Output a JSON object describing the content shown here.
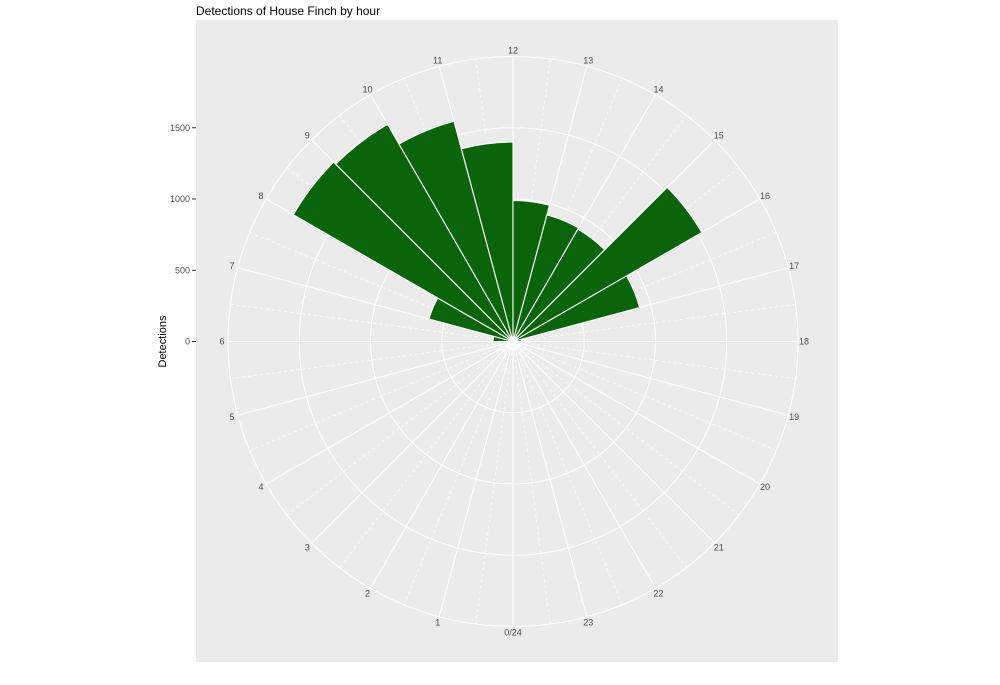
{
  "title": "Detections of House Finch by hour",
  "y_axis": {
    "label": "Detections",
    "tick_labels": [
      "0",
      "500",
      "1000",
      "1500"
    ],
    "tick_values": [
      0,
      500,
      1000,
      1500
    ]
  },
  "colors": {
    "bar_fill": "#0A650A",
    "bar_stroke": "#FFFFFF",
    "panel_background": "#EBEBEB",
    "gridline": "#FFFFFF",
    "axis_text": "#4D4D4D",
    "title_text": "#000000",
    "axis_title_text": "#000000",
    "tick_mark": "#333333",
    "figure_background": "#FFFFFF"
  },
  "chart_data": {
    "type": "bar",
    "subtype": "polar-rose",
    "orientation": "hour-of-day clock, 12 at top, hours increase clockwise, 0/24 at bottom",
    "title": "Detections of House Finch by hour",
    "ylabel": "Detections",
    "categories": [
      0,
      1,
      2,
      3,
      4,
      5,
      6,
      7,
      8,
      9,
      10,
      11,
      12,
      13,
      14,
      15,
      16,
      17,
      18,
      19,
      20,
      21,
      22,
      23
    ],
    "values": [
      0,
      0,
      0,
      0,
      0,
      0,
      140,
      610,
      1780,
      1760,
      1600,
      1400,
      990,
      920,
      910,
      1530,
      920,
      60,
      0,
      0,
      0,
      0,
      0,
      0
    ],
    "hour_labels": [
      "0/24",
      "1",
      "2",
      "3",
      "4",
      "5",
      "6",
      "7",
      "8",
      "9",
      "10",
      "11",
      "12",
      "13",
      "14",
      "15",
      "16",
      "17",
      "18",
      "19",
      "20",
      "21",
      "22",
      "23"
    ],
    "r_tick_values": [
      0,
      500,
      1000,
      1500
    ],
    "r_gridline_values": [
      500,
      1000,
      1500,
      2000
    ],
    "rlim": [
      0,
      2000
    ],
    "grid": "major circles every 500, hour spokes solid, half-hour spokes dashed",
    "legend": "none"
  }
}
